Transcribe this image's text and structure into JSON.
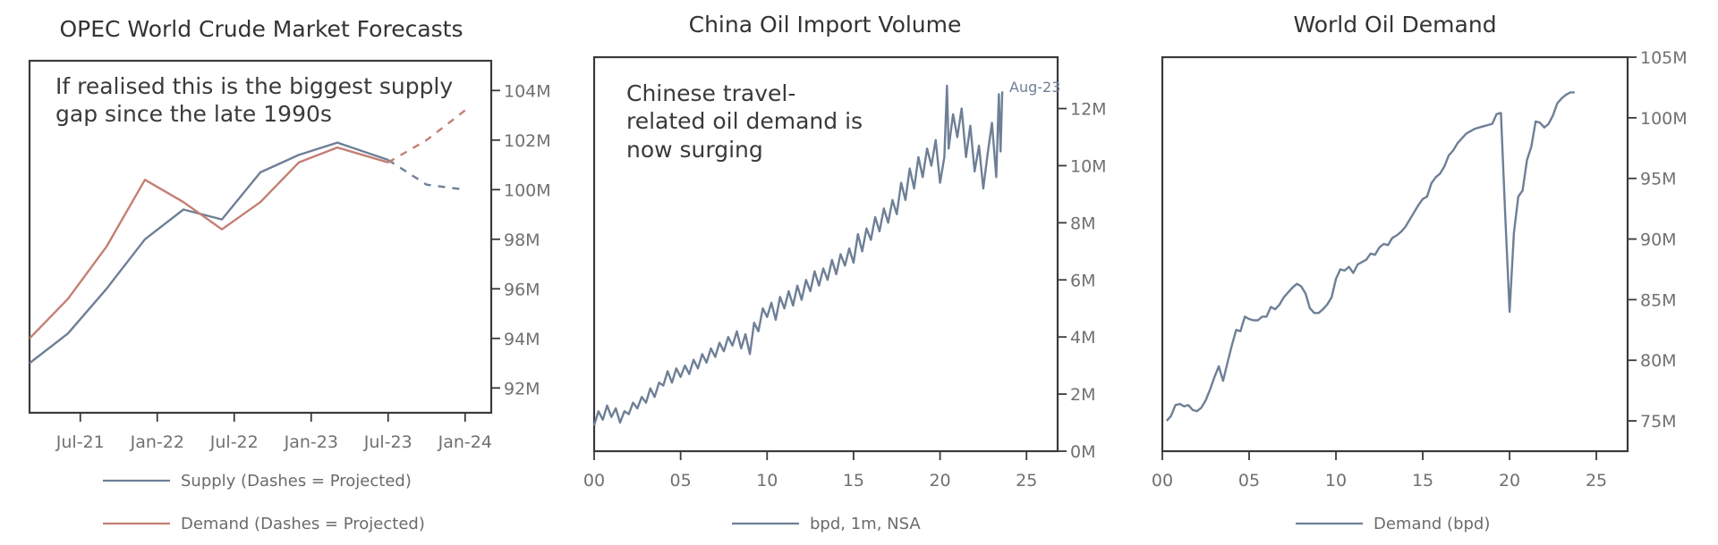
{
  "colors": {
    "supply": "#6e7f96",
    "demand": "#c47f73",
    "china": "#6e7f96",
    "world": "#6e7f96"
  },
  "chart_data": [
    {
      "type": "line",
      "title": "OPEC World Crude Market Forecasts",
      "annotation": [
        "If realised this is the biggest supply",
        "gap since the late 1990s"
      ],
      "x_tick_labels": [
        "Jul-21",
        "Jan-22",
        "Jul-22",
        "Jan-23",
        "Jul-23",
        "Jan-24"
      ],
      "y_tick_labels": [
        "92M",
        "94M",
        "96M",
        "98M",
        "100M",
        "102M",
        "104M"
      ],
      "y_ticks": [
        92,
        94,
        96,
        98,
        100,
        102,
        104
      ],
      "ylim": [
        91.0,
        105.2
      ],
      "xlim": [
        2021.17,
        2024.17
      ],
      "x_ticks": [
        2021.5,
        2022.0,
        2022.5,
        2023.0,
        2023.5,
        2024.0
      ],
      "y_axis_position": "right",
      "legend_position": "bottom",
      "grid": false,
      "series": [
        {
          "name": "Supply (Dashes = Projected)",
          "color_key": "supply",
          "x": [
            2021.17,
            2021.42,
            2021.67,
            2021.92,
            2022.17,
            2022.42,
            2022.67,
            2022.92,
            2023.17,
            2023.5
          ],
          "values": [
            93.0,
            94.2,
            96.0,
            98.0,
            99.2,
            98.8,
            100.7,
            101.4,
            101.9,
            101.2
          ],
          "projected_x": [
            2023.5,
            2023.75,
            2024.0
          ],
          "projected_values": [
            101.2,
            100.2,
            100.0
          ]
        },
        {
          "name": "Demand (Dashes = Projected)",
          "color_key": "demand",
          "x": [
            2021.17,
            2021.42,
            2021.67,
            2021.92,
            2022.17,
            2022.42,
            2022.67,
            2022.92,
            2023.17,
            2023.5
          ],
          "values": [
            94.0,
            95.6,
            97.7,
            100.4,
            99.5,
            98.4,
            99.5,
            101.1,
            101.7,
            101.1
          ],
          "projected_x": [
            2023.5,
            2023.75,
            2024.0
          ],
          "projected_values": [
            101.1,
            102.0,
            103.2
          ]
        }
      ]
    },
    {
      "type": "line",
      "title": "China Oil Import Volume",
      "annotation": [
        "Chinese travel-",
        "related oil demand is",
        "now surging"
      ],
      "end_label": "Aug-23",
      "x_tick_labels": [
        "00",
        "05",
        "10",
        "15",
        "20",
        "25"
      ],
      "x_ticks": [
        2000,
        2005,
        2010,
        2015,
        2020,
        2025
      ],
      "y_tick_labels": [
        "0M",
        "2M",
        "4M",
        "6M",
        "8M",
        "10M",
        "12M"
      ],
      "y_ticks": [
        0,
        2,
        4,
        6,
        8,
        10,
        12
      ],
      "xlim": [
        2000,
        2026.8
      ],
      "ylim": [
        0,
        13.8
      ],
      "y_axis_position": "right",
      "legend_position": "bottom",
      "grid": false,
      "series": [
        {
          "name": "bpd, 1m, NSA",
          "color_key": "china",
          "x": [
            2000.0,
            2000.25,
            2000.5,
            2000.75,
            2001.0,
            2001.25,
            2001.5,
            2001.75,
            2002.0,
            2002.25,
            2002.5,
            2002.75,
            2003.0,
            2003.25,
            2003.5,
            2003.75,
            2004.0,
            2004.25,
            2004.5,
            2004.75,
            2005.0,
            2005.25,
            2005.5,
            2005.75,
            2006.0,
            2006.25,
            2006.5,
            2006.75,
            2007.0,
            2007.25,
            2007.5,
            2007.75,
            2008.0,
            2008.25,
            2008.5,
            2008.75,
            2009.0,
            2009.25,
            2009.5,
            2009.75,
            2010.0,
            2010.25,
            2010.5,
            2010.75,
            2011.0,
            2011.25,
            2011.5,
            2011.75,
            2012.0,
            2012.25,
            2012.5,
            2012.75,
            2013.0,
            2013.25,
            2013.5,
            2013.75,
            2014.0,
            2014.25,
            2014.5,
            2014.75,
            2015.0,
            2015.25,
            2015.5,
            2015.75,
            2016.0,
            2016.25,
            2016.5,
            2016.75,
            2017.0,
            2017.25,
            2017.5,
            2017.75,
            2018.0,
            2018.25,
            2018.5,
            2018.75,
            2019.0,
            2019.25,
            2019.5,
            2019.75,
            2020.0,
            2020.25,
            2020.4,
            2020.5,
            2020.75,
            2021.0,
            2021.25,
            2021.5,
            2021.75,
            2022.0,
            2022.25,
            2022.5,
            2022.75,
            2023.0,
            2023.25,
            2023.4,
            2023.5,
            2023.6
          ],
          "values": [
            0.9,
            1.4,
            1.1,
            1.6,
            1.2,
            1.5,
            1.0,
            1.4,
            1.3,
            1.7,
            1.5,
            1.9,
            1.7,
            2.2,
            1.9,
            2.4,
            2.3,
            2.8,
            2.4,
            2.9,
            2.6,
            3.0,
            2.7,
            3.2,
            2.9,
            3.4,
            3.1,
            3.6,
            3.3,
            3.8,
            3.5,
            4.0,
            3.7,
            4.2,
            3.6,
            4.1,
            3.4,
            4.5,
            4.2,
            5.0,
            4.7,
            5.2,
            4.6,
            5.4,
            5.0,
            5.6,
            5.1,
            5.8,
            5.3,
            6.0,
            5.6,
            6.3,
            5.8,
            6.4,
            6.0,
            6.7,
            6.2,
            6.9,
            6.5,
            7.1,
            6.6,
            7.6,
            7.0,
            7.8,
            7.4,
            8.2,
            7.7,
            8.5,
            8.0,
            8.8,
            8.3,
            9.4,
            8.8,
            9.9,
            9.2,
            10.3,
            9.6,
            10.6,
            10.0,
            10.9,
            9.4,
            10.3,
            12.8,
            10.6,
            11.8,
            11.0,
            12.0,
            10.3,
            11.4,
            9.8,
            10.7,
            9.2,
            10.4,
            11.5,
            9.6,
            12.5,
            10.5,
            12.6
          ]
        }
      ]
    },
    {
      "type": "line",
      "title": "World Oil Demand",
      "x_tick_labels": [
        "00",
        "05",
        "10",
        "15",
        "20",
        "25"
      ],
      "x_ticks": [
        2000,
        2005,
        2010,
        2015,
        2020,
        2025
      ],
      "y_tick_labels": [
        "75M",
        "80M",
        "85M",
        "90M",
        "95M",
        "100M",
        "105M"
      ],
      "y_ticks": [
        75,
        80,
        85,
        90,
        95,
        100,
        105
      ],
      "xlim": [
        2000,
        2026.8
      ],
      "ylim": [
        72.5,
        105.0
      ],
      "y_axis_position": "right",
      "legend_position": "bottom",
      "grid": false,
      "series": [
        {
          "name": "Demand (bpd)",
          "color_key": "world",
          "x": [
            2000.25,
            2000.5,
            2000.75,
            2001.0,
            2001.25,
            2001.5,
            2001.75,
            2002.0,
            2002.25,
            2002.5,
            2002.75,
            2003.0,
            2003.25,
            2003.5,
            2003.75,
            2004.0,
            2004.25,
            2004.5,
            2004.75,
            2005.0,
            2005.25,
            2005.5,
            2005.75,
            2006.0,
            2006.25,
            2006.5,
            2006.75,
            2007.0,
            2007.25,
            2007.5,
            2007.75,
            2008.0,
            2008.25,
            2008.5,
            2008.75,
            2009.0,
            2009.25,
            2009.5,
            2009.75,
            2010.0,
            2010.25,
            2010.5,
            2010.75,
            2011.0,
            2011.25,
            2011.5,
            2011.75,
            2012.0,
            2012.25,
            2012.5,
            2012.75,
            2013.0,
            2013.25,
            2013.5,
            2013.75,
            2014.0,
            2014.25,
            2014.5,
            2014.75,
            2015.0,
            2015.25,
            2015.5,
            2015.75,
            2016.0,
            2016.25,
            2016.5,
            2016.75,
            2017.0,
            2017.25,
            2017.5,
            2017.75,
            2018.0,
            2018.25,
            2018.5,
            2018.75,
            2019.0,
            2019.25,
            2019.5,
            2019.75,
            2020.0,
            2020.25,
            2020.5,
            2020.75,
            2021.0,
            2021.25,
            2021.5,
            2021.75,
            2022.0,
            2022.25,
            2022.5,
            2022.75,
            2023.0,
            2023.25,
            2023.5,
            2023.75
          ],
          "values": [
            75.0,
            75.4,
            76.3,
            76.4,
            76.2,
            76.3,
            75.9,
            75.8,
            76.1,
            76.7,
            77.6,
            78.6,
            79.5,
            78.3,
            79.8,
            81.2,
            82.5,
            82.4,
            83.6,
            83.4,
            83.3,
            83.3,
            83.6,
            83.6,
            84.4,
            84.2,
            84.6,
            85.2,
            85.6,
            86.0,
            86.3,
            86.1,
            85.5,
            84.3,
            83.9,
            83.9,
            84.2,
            84.6,
            85.2,
            86.7,
            87.5,
            87.4,
            87.7,
            87.2,
            87.9,
            88.1,
            88.3,
            88.8,
            88.7,
            89.3,
            89.6,
            89.5,
            90.1,
            90.3,
            90.6,
            91.0,
            91.6,
            92.2,
            92.8,
            93.3,
            93.5,
            94.6,
            95.1,
            95.4,
            96.0,
            96.9,
            97.3,
            97.9,
            98.3,
            98.7,
            98.9,
            99.1,
            99.2,
            99.3,
            99.4,
            99.5,
            100.3,
            100.4,
            92.0,
            84.0,
            90.5,
            93.5,
            94.0,
            96.5,
            97.6,
            99.7,
            99.6,
            99.2,
            99.5,
            100.2,
            101.2,
            101.6,
            101.9,
            102.1,
            102.1
          ]
        }
      ]
    }
  ]
}
